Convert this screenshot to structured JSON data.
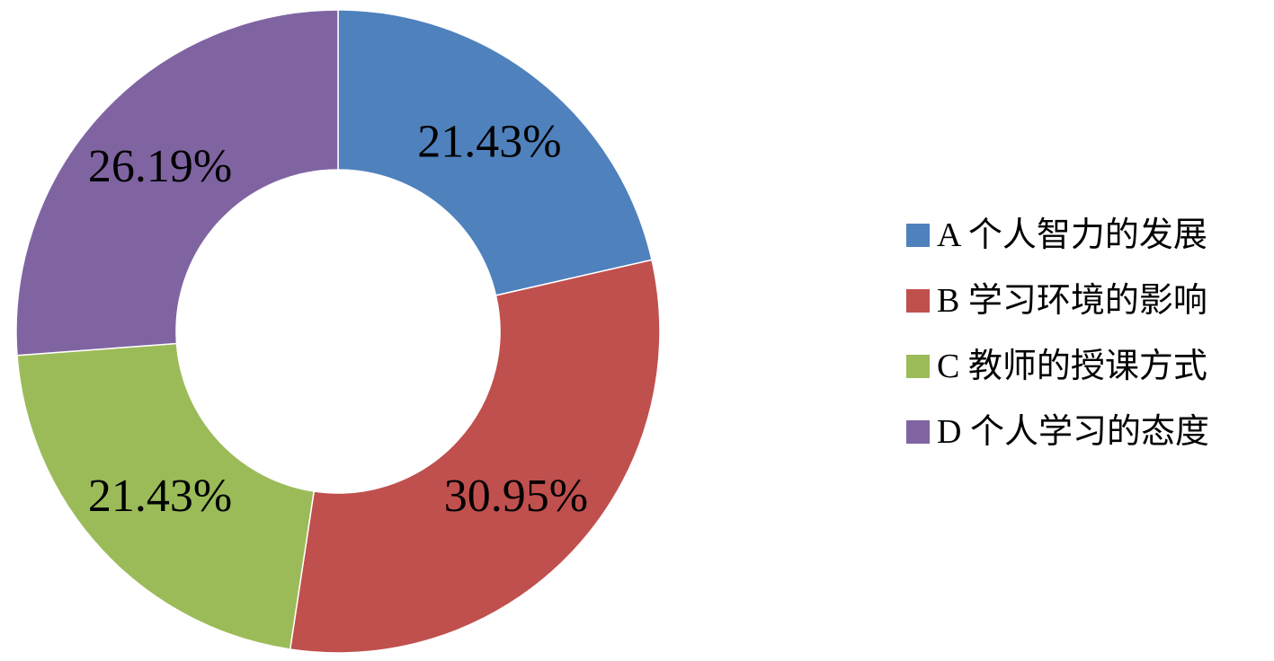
{
  "chart_data": {
    "type": "pie",
    "donut": true,
    "legend_position": "right",
    "categories": [
      "A 个人智力的发展",
      "B 学习环境的影响",
      "C 教师的授课方式",
      "D 个人学习的态度"
    ],
    "values": [
      21.43,
      30.95,
      21.43,
      26.19
    ],
    "labels": [
      "21.43%",
      "30.95%",
      "21.43%",
      "26.19%"
    ],
    "colors": [
      "#4f81bd",
      "#c0504d",
      "#9bbb59",
      "#8064a2"
    ]
  }
}
